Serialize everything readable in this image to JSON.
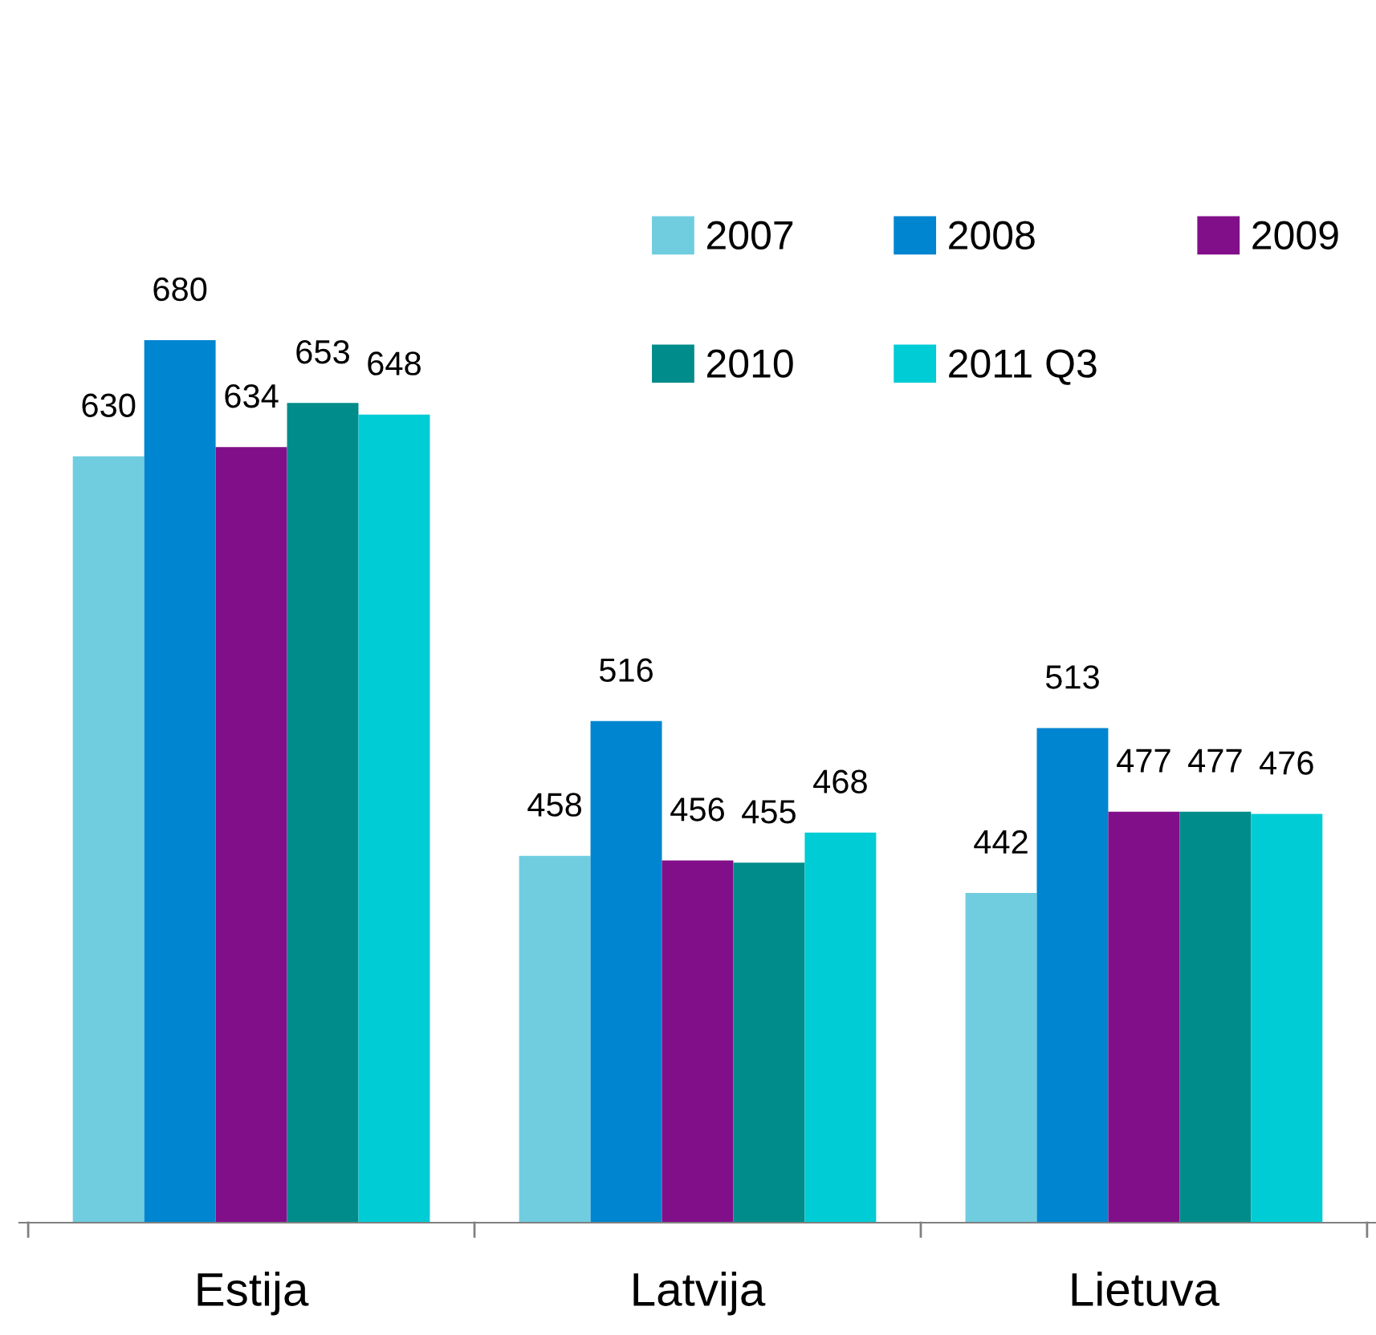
{
  "chart_data": {
    "type": "bar",
    "categories": [
      "Estija",
      "Latvija",
      "Lietuva"
    ],
    "series": [
      {
        "name": "2007",
        "color": "#70cde0",
        "values": [
          630,
          458,
          442
        ]
      },
      {
        "name": "2008",
        "color": "#0085d0",
        "values": [
          680,
          516,
          513
        ]
      },
      {
        "name": "2009",
        "color": "#820f8a",
        "values": [
          634,
          456,
          477
        ]
      },
      {
        "name": "2010",
        "color": "#008c8a",
        "values": [
          653,
          455,
          477
        ]
      },
      {
        "name": "2011 Q3",
        "color": "#00ccd5",
        "values": [
          648,
          468,
          476
        ]
      }
    ],
    "ylim": [
      300,
      680
    ],
    "data_labels": true,
    "legend": "top right",
    "grid": false
  }
}
